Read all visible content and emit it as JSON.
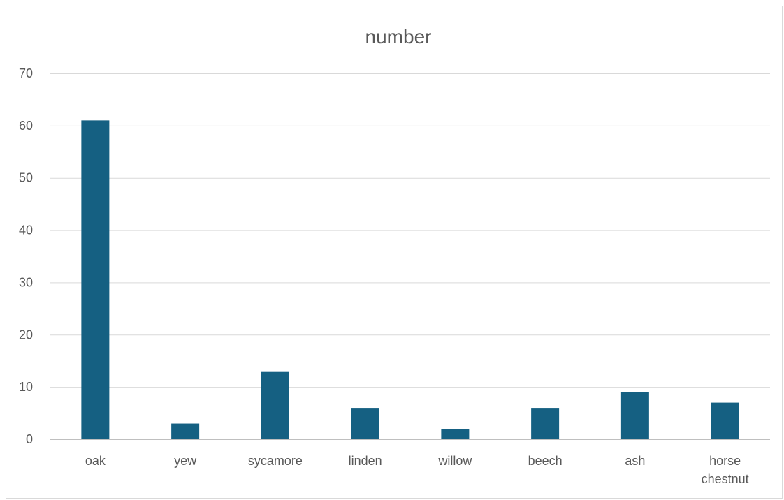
{
  "chart_data": {
    "type": "bar",
    "title": "number",
    "xlabel": "",
    "ylabel": "",
    "categories": [
      "oak",
      "yew",
      "sycamore",
      "linden",
      "willow",
      "beech",
      "ash",
      "horse chestnut"
    ],
    "category_lines": [
      [
        "oak"
      ],
      [
        "yew"
      ],
      [
        "sycamore"
      ],
      [
        "linden"
      ],
      [
        "willow"
      ],
      [
        "beech"
      ],
      [
        "ash"
      ],
      [
        "horse",
        "chestnut"
      ]
    ],
    "values": [
      61,
      3,
      13,
      6,
      2,
      6,
      9,
      7
    ],
    "ylim": [
      0,
      70
    ],
    "yticks": [
      "0",
      "10",
      "20",
      "30",
      "40",
      "50",
      "60",
      "70"
    ],
    "grid": true,
    "legend": "none",
    "bar_color": "#156082"
  }
}
